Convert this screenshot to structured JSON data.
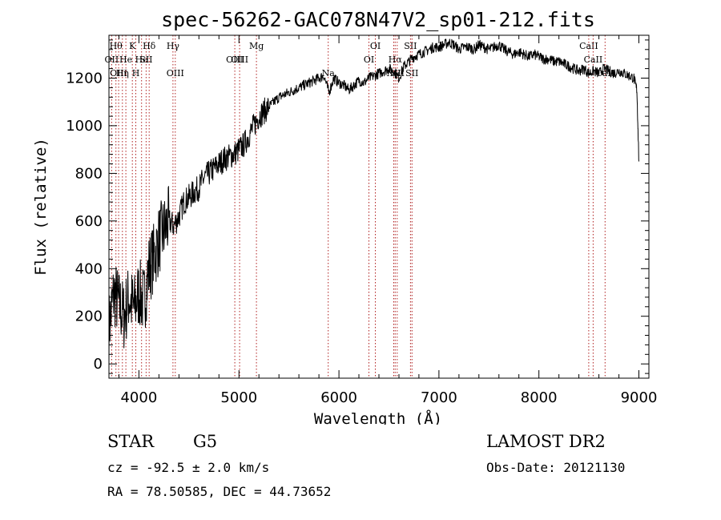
{
  "chart_data": {
    "type": "line",
    "title": "spec-56262-GAC078N47V2_sp01-212.fits",
    "xlabel": "Wavelength (Å)",
    "ylabel": "Flux (relative)",
    "xlim": [
      3700,
      9100
    ],
    "ylim": [
      -60,
      1380
    ],
    "xticks": [
      4000,
      5000,
      6000,
      7000,
      8000,
      9000
    ],
    "yticks": [
      0,
      200,
      400,
      600,
      800,
      1000,
      1200
    ],
    "grid": false,
    "series": [
      {
        "x": [
          3700,
          3750,
          3800,
          3850,
          3900,
          3950,
          4000,
          4050,
          4100,
          4150,
          4200,
          4250,
          4300,
          4350,
          4400,
          4450,
          4500,
          4550,
          4600,
          4650,
          4700,
          4750,
          4800,
          4850,
          4900,
          4950,
          5000,
          5050,
          5100,
          5150,
          5200,
          5250,
          5300,
          5350,
          5400,
          5450,
          5500,
          5550,
          5600,
          5650,
          5700,
          5750,
          5800,
          5850,
          5900,
          5950,
          6000,
          6050,
          6100,
          6150,
          6200,
          6250,
          6300,
          6350,
          6400,
          6450,
          6500,
          6550,
          6600,
          6650,
          6700,
          6750,
          6800,
          6850,
          6900,
          6950,
          7000,
          7050,
          7100,
          7150,
          7200,
          7250,
          7300,
          7350,
          7400,
          7450,
          7500,
          7550,
          7600,
          7650,
          7700,
          7750,
          7800,
          7850,
          7900,
          7950,
          8000,
          8050,
          8100,
          8150,
          8200,
          8250,
          8300,
          8350,
          8400,
          8450,
          8500,
          8550,
          8600,
          8650,
          8700,
          8750,
          8800,
          8850,
          8900,
          8950,
          8980,
          9000
        ],
        "values": [
          150,
          300,
          250,
          200,
          280,
          230,
          300,
          260,
          400,
          450,
          520,
          560,
          600,
          580,
          620,
          680,
          700,
          720,
          740,
          780,
          800,
          820,
          840,
          860,
          870,
          880,
          900,
          920,
          960,
          1000,
          1040,
          1060,
          1080,
          1100,
          1120,
          1130,
          1140,
          1150,
          1160,
          1170,
          1180,
          1190,
          1200,
          1210,
          1140,
          1200,
          1180,
          1170,
          1150,
          1170,
          1190,
          1180,
          1200,
          1210,
          1220,
          1230,
          1240,
          1230,
          1200,
          1250,
          1270,
          1290,
          1300,
          1310,
          1320,
          1330,
          1330,
          1340,
          1350,
          1340,
          1320,
          1330,
          1330,
          1320,
          1340,
          1330,
          1320,
          1330,
          1340,
          1320,
          1310,
          1300,
          1310,
          1300,
          1290,
          1300,
          1290,
          1280,
          1280,
          1270,
          1270,
          1260,
          1250,
          1240,
          1230,
          1240,
          1220,
          1230,
          1220,
          1240,
          1230,
          1220,
          1230,
          1220,
          1210,
          1200,
          1150,
          850
        ]
      }
    ],
    "lines": [
      {
        "x": 3727,
        "label": "OII",
        "row": 2
      },
      {
        "x": 3770,
        "label": "Hθ",
        "row": 1
      },
      {
        "x": 3797,
        "label": "OIII",
        "row": 3
      },
      {
        "x": 3835,
        "label": "Hη",
        "row": 3
      },
      {
        "x": 3869,
        "label": "He",
        "row": 2
      },
      {
        "x": 3934,
        "label": "K",
        "row": 1
      },
      {
        "x": 3968,
        "label": "H",
        "row": 3
      },
      {
        "x": 4026,
        "label": "He",
        "row": 2
      },
      {
        "x": 4072,
        "label": "SII",
        "row": 2
      },
      {
        "x": 4102,
        "label": "Hδ",
        "row": 1
      },
      {
        "x": 4340,
        "label": "Hγ",
        "row": 1
      },
      {
        "x": 4363,
        "label": "OIII",
        "row": 3
      },
      {
        "x": 4959,
        "label": "OIII",
        "row": 2
      },
      {
        "x": 5007,
        "label": "OIII",
        "row": 2
      },
      {
        "x": 5175,
        "label": "Mg",
        "row": 1
      },
      {
        "x": 5893,
        "label": "Na",
        "row": 3
      },
      {
        "x": 6300,
        "label": "OI",
        "row": 2
      },
      {
        "x": 6364,
        "label": "OI",
        "row": 1
      },
      {
        "x": 6548,
        "label": "NII",
        "row": 3
      },
      {
        "x": 6563,
        "label": "Hα",
        "row": 2
      },
      {
        "x": 6583,
        "label": "NII",
        "row": 3
      },
      {
        "x": 6716,
        "label": "SII",
        "row": 1
      },
      {
        "x": 6731,
        "label": "SII",
        "row": 3
      },
      {
        "x": 8498,
        "label": "CaII",
        "row": 1
      },
      {
        "x": 8542,
        "label": "CaII",
        "row": 2
      },
      {
        "x": 8662,
        "label": "CaII",
        "row": 3
      }
    ]
  },
  "footer": {
    "object_class": "STAR",
    "subclass": "G5",
    "survey": "LAMOST DR2",
    "redshift": "cz = -92.5 ± 2.0 km/s",
    "obs_date": "Obs-Date: 20121130",
    "coords": "RA =  78.50585, DEC =  44.73652"
  }
}
